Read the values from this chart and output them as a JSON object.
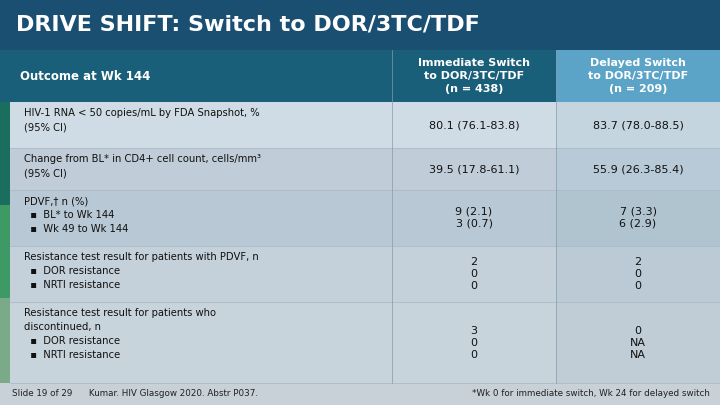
{
  "title": "DRIVE SHIFT: Switch to DOR/3TC/TDF",
  "title_bg": "#1b4f72",
  "title_color": "#ffffff",
  "header_bg_main": "#1a5f7a",
  "header_bg_col3": "#5ba4c8",
  "col1_header": "Outcome at Wk 144",
  "col2_header": "Immediate Switch\nto DOR/3TC/TDF\n(n = 438)",
  "col3_header": "Delayed Switch\nto DOR/3TC/TDF\n(n = 209)",
  "accent_colors": [
    "#1a5f7a",
    "#1a7a6a",
    "#3a9a6a",
    "#7aaa88"
  ],
  "row_bgs": [
    "#d0dce5",
    "#c0ccd8",
    "#b8c8d4",
    "#c4d0da",
    "#c8d4dc"
  ],
  "footer_bg": "#c8d0d8",
  "rows": [
    {
      "label": "HIV-1 RNA < 50 copies/mL by FDA Snapshot, %\n(95% CI)",
      "col2": "80.1 (76.1-83.8)",
      "col3": "83.7 (78.0-88.5)"
    },
    {
      "label": "Change from BL* in CD4+ cell count, cells/mm³\n(95% CI)",
      "col2": "39.5 (17.8-61.1)",
      "col3": "55.9 (26.3-85.4)"
    },
    {
      "label": "PDVF,† n (%)\n  ▪  BL* to Wk 144\n  ▪  Wk 49 to Wk 144",
      "col2": "9 (2.1)\n3 (0.7)",
      "col3": "7 (3.3)\n6 (2.9)"
    },
    {
      "label": "Resistance test result for patients with PDVF, n\n  ▪  DOR resistance\n  ▪  NRTI resistance",
      "col2": "2\n0\n0",
      "col3": "2\n0\n0"
    },
    {
      "label": "Resistance test result for patients who\ndiscontinued, n\n  ▪  DOR resistance\n  ▪  NRTI resistance",
      "col2": "3\n0\n0",
      "col3": "0\nNA\nNA"
    }
  ],
  "footer_left": "Slide 19 of 29      Kumar. HIV Glasgow 2020. Abstr P037.",
  "footer_right": "*Wk 0 for immediate switch, Wk 24 for delayed switch"
}
